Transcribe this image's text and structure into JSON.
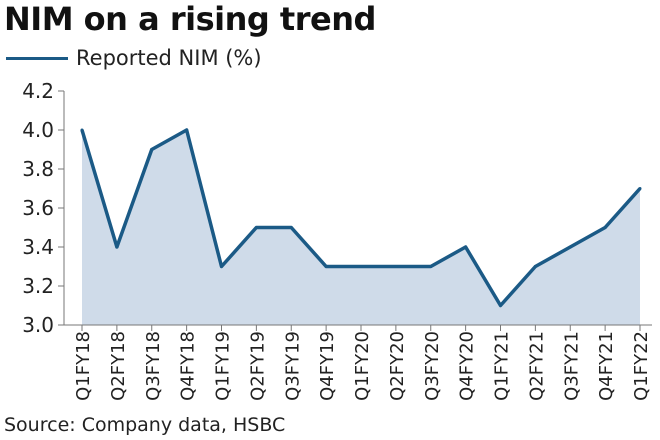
{
  "title": "NIM on a rising trend",
  "legend_label": "Reported NIM (%)",
  "source": "Source: Company data, HSBC",
  "colors": {
    "line": "#1b5a86",
    "area": "#cfdbe9",
    "axis": "#777777"
  },
  "chart_data": {
    "type": "area",
    "title": "NIM on a rising trend",
    "categories": [
      "Q1FY18",
      "Q2FY18",
      "Q3FY18",
      "Q4FY18",
      "Q1FY19",
      "Q2FY19",
      "Q3FY19",
      "Q4FY19",
      "Q1FY20",
      "Q2FY20",
      "Q3FY20",
      "Q4FY20",
      "Q1FY21",
      "Q2FY21",
      "Q3FY21",
      "Q4FY21",
      "Q1FY22"
    ],
    "series": [
      {
        "name": "Reported NIM (%)",
        "values": [
          4.0,
          3.4,
          3.9,
          4.0,
          3.3,
          3.5,
          3.5,
          3.3,
          3.3,
          3.3,
          3.3,
          3.4,
          3.1,
          3.3,
          3.4,
          3.5,
          3.7
        ]
      }
    ],
    "yticks": [
      "3.0",
      "3.2",
      "3.4",
      "3.6",
      "3.8",
      "4.0",
      "4.2"
    ],
    "ylim": [
      3.0,
      4.2
    ],
    "grid": false,
    "legend": "top-left"
  }
}
